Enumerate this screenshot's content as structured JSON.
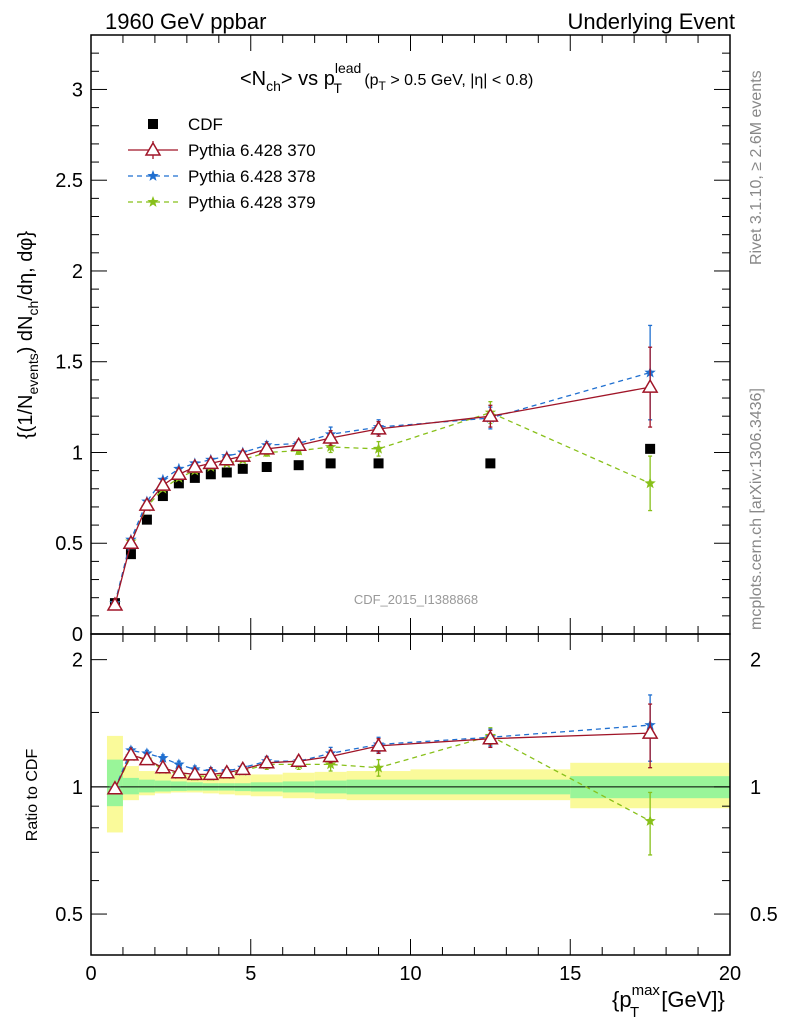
{
  "header": {
    "left": "1960 GeV ppbar",
    "right": "Underlying Event"
  },
  "watermark": "CDF_2015_I1388868",
  "side_labels": {
    "rivet": "Rivet 3.1.10, ≥ 2.6M events",
    "mcplots": "mcplots.cern.ch [arXiv:1306.3436]"
  },
  "chart_data": [
    {
      "type": "scatter",
      "panel": "main",
      "title_parts": {
        "t1": "<N",
        "t1_sub": "ch",
        "t2": "> vs p",
        "t2_sup": "lead",
        "t2_sub": "T",
        "t3": " (p",
        "t3_sub": "T",
        "t4": " > 0.5 GeV, |η| < 0.8)"
      },
      "ylabel_parts": {
        "a": "{(1/N",
        "a_sub": "events",
        "b": ") dN",
        "b_sub": "ch",
        "c": "/dη, dφ}"
      },
      "ylim": [
        0,
        3.3
      ],
      "yticks": [
        0,
        0.5,
        1,
        1.5,
        2,
        2.5,
        3
      ],
      "ytick_labels": [
        "0",
        "0.5",
        "1",
        "1.5",
        "2",
        "2.5",
        "3"
      ],
      "xlim": [
        0,
        20
      ],
      "legend_position": "top-left",
      "series": [
        {
          "name": "CDF",
          "color": "#000000",
          "marker": "square",
          "x": [
            0.75,
            1.25,
            1.75,
            2.25,
            2.75,
            3.25,
            3.75,
            4.25,
            4.75,
            5.5,
            6.5,
            7.5,
            9.0,
            12.5,
            17.5
          ],
          "y": [
            0.17,
            0.44,
            0.63,
            0.76,
            0.83,
            0.86,
            0.88,
            0.89,
            0.91,
            0.92,
            0.93,
            0.94,
            0.94,
            0.94,
            1.02
          ]
        },
        {
          "name": "Pythia 6.428 370",
          "color": "#a01528",
          "marker": "triangle",
          "line": "solid",
          "x": [
            0.75,
            1.25,
            1.75,
            2.25,
            2.75,
            3.25,
            3.75,
            4.25,
            4.75,
            5.5,
            6.5,
            7.5,
            9.0,
            12.5,
            17.5
          ],
          "y": [
            0.16,
            0.5,
            0.71,
            0.82,
            0.88,
            0.92,
            0.94,
            0.96,
            0.98,
            1.02,
            1.04,
            1.08,
            1.13,
            1.2,
            1.36
          ],
          "err": [
            0.01,
            0.01,
            0.01,
            0.01,
            0.01,
            0.01,
            0.01,
            0.01,
            0.01,
            0.02,
            0.02,
            0.04,
            0.04,
            0.06,
            0.22
          ]
        },
        {
          "name": "Pythia 6.428 378",
          "color": "#1f6fd0",
          "marker": "star",
          "line": "dashed",
          "x": [
            0.75,
            1.25,
            1.75,
            2.25,
            2.75,
            3.25,
            3.75,
            4.25,
            4.75,
            5.5,
            6.5,
            7.5,
            9.0,
            12.5,
            17.5
          ],
          "y": [
            0.17,
            0.52,
            0.73,
            0.85,
            0.91,
            0.94,
            0.96,
            0.98,
            1.0,
            1.04,
            1.05,
            1.1,
            1.14,
            1.19,
            1.44
          ],
          "err": [
            0.01,
            0.01,
            0.01,
            0.01,
            0.01,
            0.01,
            0.01,
            0.01,
            0.01,
            0.02,
            0.02,
            0.04,
            0.04,
            0.06,
            0.26
          ]
        },
        {
          "name": "Pythia 6.428 379",
          "color": "#88c01a",
          "marker": "star",
          "line": "dashed",
          "x": [
            0.75,
            1.25,
            1.75,
            2.25,
            2.75,
            3.25,
            3.75,
            4.25,
            4.75,
            5.5,
            6.5,
            7.5,
            9.0,
            12.5,
            17.5
          ],
          "y": [
            0.17,
            0.51,
            0.7,
            0.8,
            0.86,
            0.9,
            0.92,
            0.94,
            0.96,
            1.0,
            1.01,
            1.03,
            1.02,
            1.22,
            0.83
          ],
          "err": [
            0.01,
            0.01,
            0.01,
            0.01,
            0.01,
            0.01,
            0.01,
            0.01,
            0.01,
            0.02,
            0.02,
            0.03,
            0.04,
            0.06,
            0.15
          ]
        }
      ]
    },
    {
      "type": "scatter",
      "panel": "ratio",
      "ylabel": "Ratio to CDF",
      "ylim": [
        0.4,
        2.3
      ],
      "yticks": [
        0.5,
        1,
        2
      ],
      "ytick_labels": [
        "0.5",
        "1",
        "2"
      ],
      "xlim": [
        0,
        20
      ],
      "xticks": [
        0,
        5,
        10,
        15,
        20
      ],
      "xtick_labels": [
        "0",
        "5",
        "10",
        "15",
        "20"
      ],
      "xlabel_parts": {
        "a": "{p",
        "a_sup": "max",
        "a_sub": "T",
        "b": " [GeV]}"
      },
      "bands": {
        "bins": [
          [
            0.5,
            1.0
          ],
          [
            1.0,
            1.5
          ],
          [
            1.5,
            2.0
          ],
          [
            2.0,
            2.5
          ],
          [
            2.5,
            3.0
          ],
          [
            3.0,
            3.5
          ],
          [
            3.5,
            4.0
          ],
          [
            4.0,
            4.5
          ],
          [
            4.5,
            5.0
          ],
          [
            5.0,
            6.0
          ],
          [
            6.0,
            7.0
          ],
          [
            7.0,
            8.0
          ],
          [
            8.0,
            10.0
          ],
          [
            10.0,
            15.0
          ],
          [
            15.0,
            20.0
          ]
        ],
        "stat_lo": [
          0.9,
          0.96,
          0.97,
          0.975,
          0.978,
          0.98,
          0.98,
          0.98,
          0.977,
          0.975,
          0.97,
          0.965,
          0.96,
          0.96,
          0.94
        ],
        "stat_hi": [
          1.16,
          1.05,
          1.04,
          1.035,
          1.03,
          1.025,
          1.02,
          1.02,
          1.02,
          1.025,
          1.03,
          1.035,
          1.04,
          1.04,
          1.06
        ],
        "syst_lo": [
          0.78,
          0.93,
          0.955,
          0.965,
          0.97,
          0.97,
          0.965,
          0.96,
          0.955,
          0.95,
          0.94,
          0.935,
          0.93,
          0.93,
          0.89
        ],
        "syst_hi": [
          1.32,
          1.12,
          1.09,
          1.075,
          1.07,
          1.065,
          1.065,
          1.065,
          1.065,
          1.07,
          1.08,
          1.085,
          1.09,
          1.1,
          1.14
        ],
        "stat_color": "#99f599",
        "syst_color": "#fafa9a"
      },
      "series": [
        {
          "name": "Pythia 6.428 370",
          "color": "#a01528",
          "marker": "triangle",
          "line": "solid",
          "x": [
            0.75,
            1.25,
            1.75,
            2.25,
            2.75,
            3.25,
            3.75,
            4.25,
            4.75,
            5.5,
            6.5,
            7.5,
            9.0,
            12.5,
            17.5
          ],
          "y": [
            0.99,
            1.19,
            1.16,
            1.11,
            1.08,
            1.07,
            1.07,
            1.08,
            1.1,
            1.14,
            1.15,
            1.18,
            1.25,
            1.3,
            1.34
          ],
          "err": [
            0.01,
            0.02,
            0.02,
            0.02,
            0.02,
            0.02,
            0.02,
            0.02,
            0.02,
            0.03,
            0.03,
            0.04,
            0.05,
            0.06,
            0.23
          ]
        },
        {
          "name": "Pythia 6.428 378",
          "color": "#1f6fd0",
          "marker": "star",
          "line": "dashed",
          "x": [
            0.75,
            1.25,
            1.75,
            2.25,
            2.75,
            3.25,
            3.75,
            4.25,
            4.75,
            5.5,
            6.5,
            7.5,
            9.0,
            12.5,
            17.5
          ],
          "y": [
            0.99,
            1.22,
            1.2,
            1.17,
            1.13,
            1.1,
            1.09,
            1.09,
            1.11,
            1.15,
            1.15,
            1.2,
            1.26,
            1.31,
            1.4
          ],
          "err": [
            0.01,
            0.02,
            0.02,
            0.02,
            0.02,
            0.02,
            0.02,
            0.02,
            0.02,
            0.03,
            0.03,
            0.04,
            0.05,
            0.06,
            0.25
          ]
        },
        {
          "name": "Pythia 6.428 379",
          "color": "#88c01a",
          "marker": "star",
          "line": "dashed",
          "x": [
            0.75,
            1.25,
            1.75,
            2.25,
            2.75,
            3.25,
            3.75,
            4.25,
            4.75,
            5.5,
            6.5,
            7.5,
            9.0,
            12.5,
            17.5
          ],
          "y": [
            0.99,
            1.18,
            1.16,
            1.1,
            1.07,
            1.06,
            1.06,
            1.07,
            1.09,
            1.13,
            1.13,
            1.13,
            1.11,
            1.32,
            0.83
          ],
          "err": [
            0.01,
            0.02,
            0.02,
            0.02,
            0.02,
            0.02,
            0.02,
            0.02,
            0.02,
            0.03,
            0.03,
            0.04,
            0.05,
            0.06,
            0.14
          ]
        }
      ]
    }
  ]
}
